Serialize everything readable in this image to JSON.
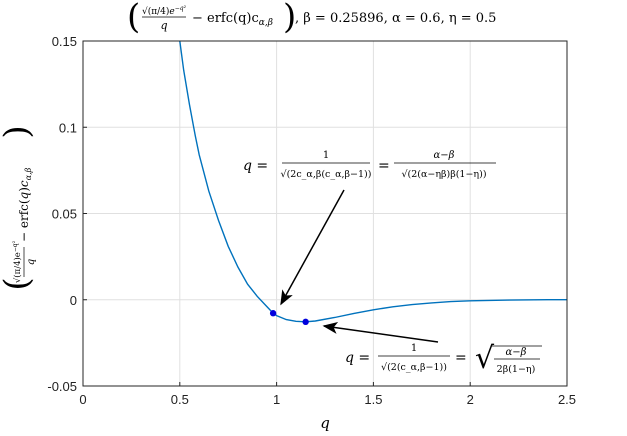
{
  "chart_data": {
    "type": "line",
    "title": {
      "lhs_num_sqrt": "√(π/4)",
      "lhs_num_exp": "e",
      "lhs_num_pow": "−q²",
      "lhs_den": "q",
      "lhs_tail": "− erfc(q)c",
      "lhs_sub": "α,β",
      "params": ", β = 0.25896, α = 0.6, η = 0.5"
    },
    "xlabel": "q",
    "ylabel": "(√(π/4)e^(−q²)/q − erfc(q)c_α,β)",
    "xlim": [
      0,
      2.5
    ],
    "ylim": [
      -0.05,
      0.15
    ],
    "xticks": [
      "0",
      "0.5",
      "1",
      "1.5",
      "2",
      "2.5"
    ],
    "xtick_values": [
      0,
      0.5,
      1,
      1.5,
      2,
      2.5
    ],
    "yticks": [
      "-0.05",
      "0",
      "0.05",
      "0.1",
      "0.15"
    ],
    "ytick_values": [
      -0.05,
      0,
      0.05,
      0.1,
      0.15
    ],
    "grid": true,
    "series": [
      {
        "color": "#0072bd",
        "x": [
          0.5,
          0.52,
          0.55,
          0.58,
          0.6,
          0.65,
          0.7,
          0.75,
          0.8,
          0.85,
          0.9,
          0.95,
          0.98,
          1.0,
          1.05,
          1.1,
          1.15,
          1.2,
          1.3,
          1.4,
          1.5,
          1.6,
          1.7,
          1.8,
          1.9,
          2.0,
          2.2,
          2.4,
          2.5
        ],
        "y": [
          0.15,
          0.133,
          0.113,
          0.095,
          0.084,
          0.063,
          0.046,
          0.031,
          0.019,
          0.009,
          0.002,
          -0.004,
          -0.0075,
          -0.0092,
          -0.0115,
          -0.0125,
          -0.0128,
          -0.0123,
          -0.0103,
          -0.0079,
          -0.0058,
          -0.0041,
          -0.0028,
          -0.0018,
          -0.0011,
          -0.0006,
          -0.0002,
          0.0,
          0.0
        ]
      }
    ],
    "points": [
      {
        "x": 0.982,
        "y": -0.0078,
        "color": "#0000dd"
      },
      {
        "x": 1.15,
        "y": -0.0128,
        "color": "#0000dd"
      }
    ],
    "annotations": [
      {
        "lhs": "q =",
        "frac1_num": "1",
        "frac1_den": "√(2c_α,β(c_α,β−1))",
        "eq": "=",
        "frac2_num": "α−β",
        "frac2_den": "√(2(α−ηβ)β(1−η))",
        "target_x": 0.982,
        "target_y": -0.0078
      },
      {
        "lhs": "q =",
        "frac1_num": "1",
        "frac1_den": "√(2(c_α,β−1))",
        "eq": "=",
        "frac2_num": "α−β",
        "frac2_den": "2β(1−η)",
        "target_x": 1.15,
        "target_y": -0.0128
      }
    ]
  }
}
